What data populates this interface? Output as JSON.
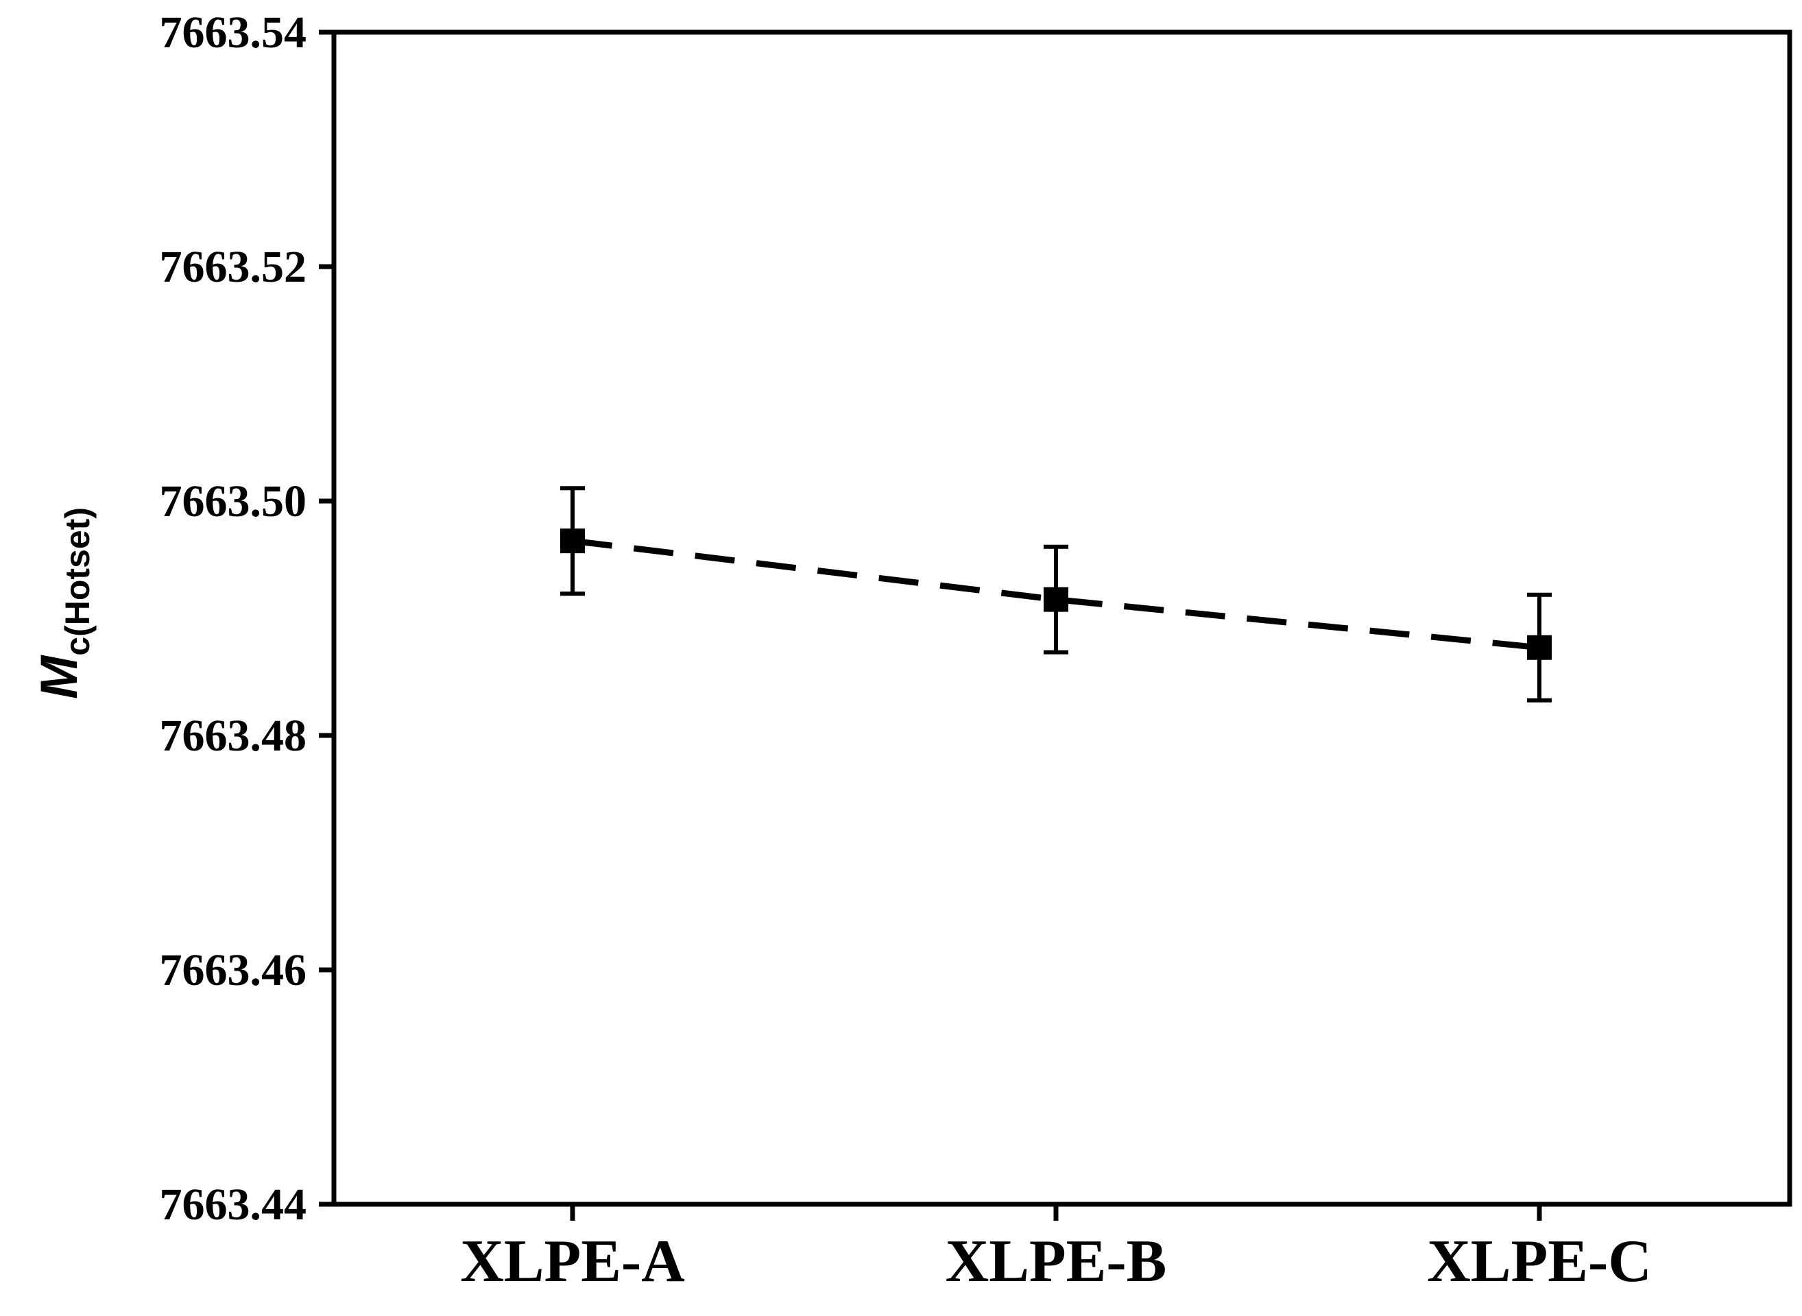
{
  "chart_data": {
    "type": "line",
    "title": "",
    "xlabel": "",
    "ylabel": {
      "main": "M",
      "subscript": "c(Hotset)"
    },
    "categories": [
      "XLPE-A",
      "XLPE-B",
      "XLPE-C"
    ],
    "series": [
      {
        "values": [
          7663.4966,
          7663.4916,
          7663.4875
        ],
        "error": [
          0.0045,
          0.0045,
          0.0045
        ],
        "marker": "square",
        "line_style": "dashed",
        "color": "#000000"
      }
    ],
    "ylim": [
      7663.44,
      7663.54
    ],
    "yticks": [
      "7663.44",
      "7663.46",
      "7663.48",
      "7663.50",
      "7663.52",
      "7663.54"
    ],
    "grid": false,
    "legend": "none"
  }
}
